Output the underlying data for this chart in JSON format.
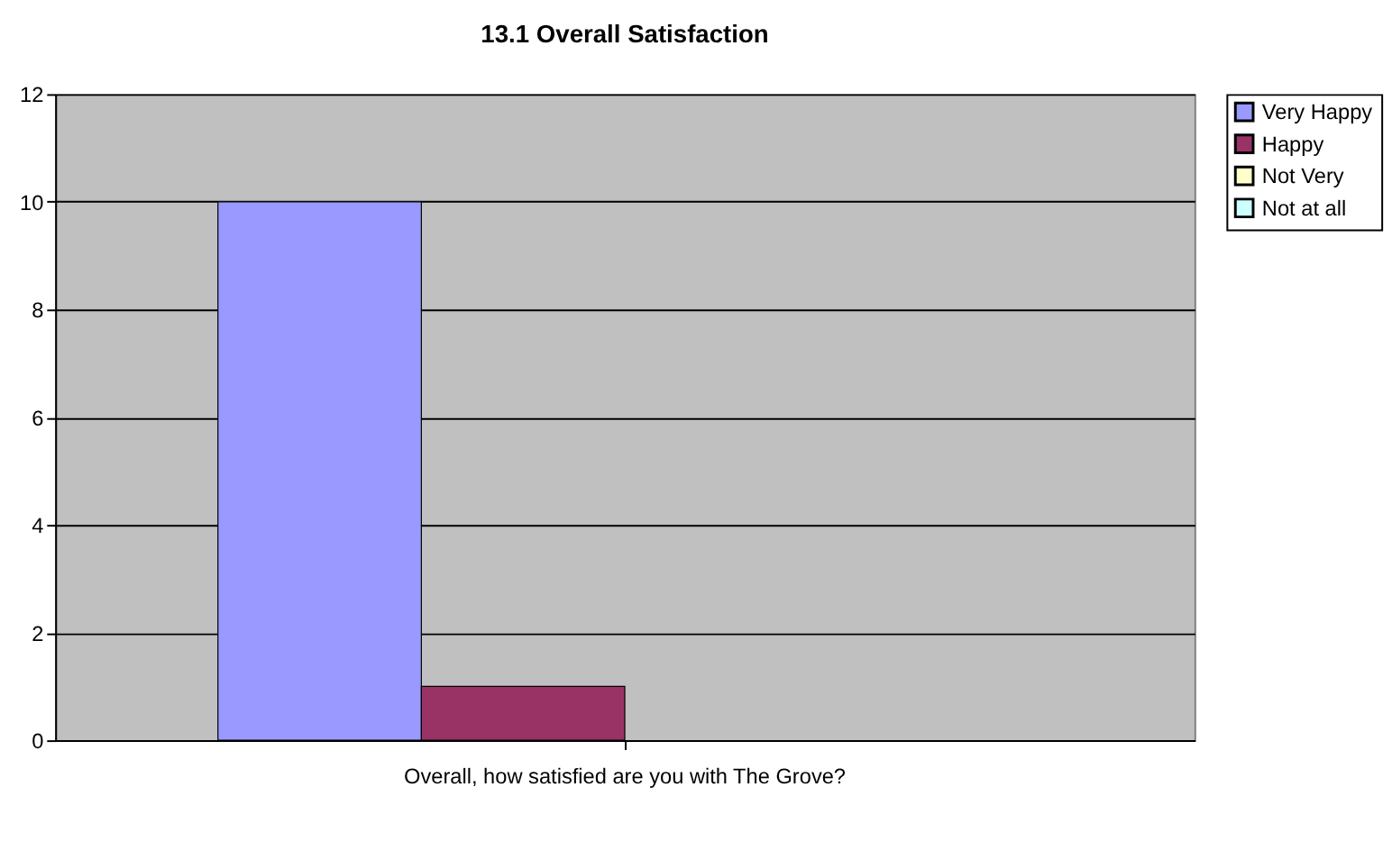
{
  "chart_data": {
    "type": "bar",
    "title": "13.1 Overall Satisfaction",
    "categories": [
      "Overall, how satisfied are you with The Grove?"
    ],
    "series": [
      {
        "name": "Very Happy",
        "color": "#9999ff",
        "values": [
          10
        ]
      },
      {
        "name": "Happy",
        "color": "#993366",
        "values": [
          1
        ]
      },
      {
        "name": "Not Very",
        "color": "#ffffcc",
        "values": [
          0
        ]
      },
      {
        "name": "Not at all",
        "color": "#ccffff",
        "values": [
          0
        ]
      }
    ],
    "ylim": [
      0,
      12
    ],
    "yticks": [
      0,
      2,
      4,
      6,
      8,
      10,
      12
    ],
    "grid": "y",
    "legend": "right"
  }
}
